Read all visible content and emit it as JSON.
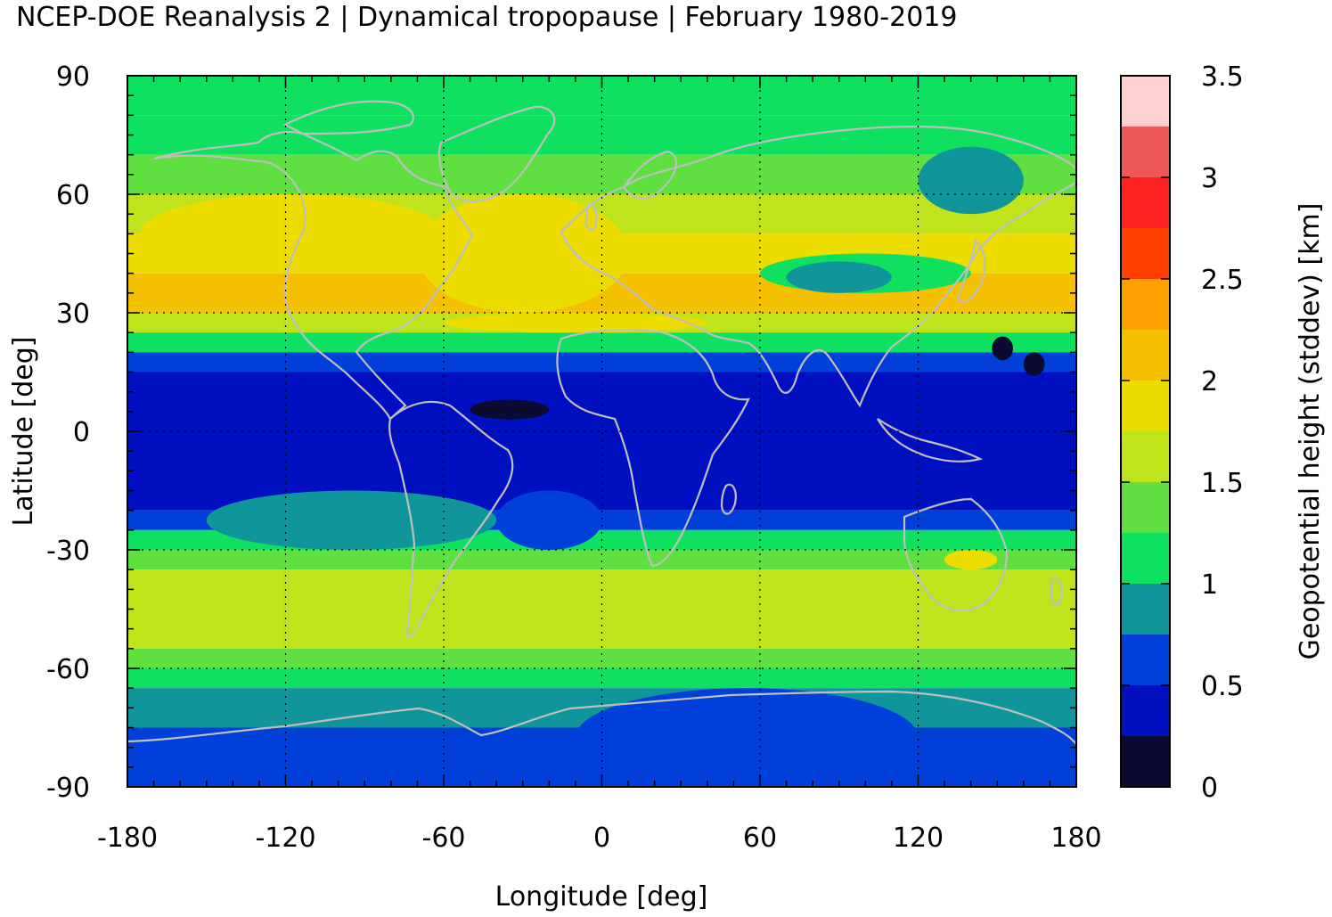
{
  "title": "NCEP-DOE Reanalysis 2 | Dynamical tropopause | February 1980-2019",
  "chart_data": {
    "type": "heatmap",
    "xlabel": "Longitude [deg]",
    "ylabel": "Latitude [deg]",
    "xlim": [
      -180,
      180
    ],
    "ylim": [
      -90,
      90
    ],
    "xticks": [
      "-180",
      "-120",
      "-60",
      "0",
      "60",
      "120",
      "180"
    ],
    "xtick_values": [
      -180,
      -120,
      -60,
      0,
      60,
      120,
      180
    ],
    "yticks": [
      "90",
      "60",
      "30",
      "0",
      "-30",
      "-60",
      "-90"
    ],
    "ytick_values": [
      90,
      60,
      30,
      0,
      -30,
      -60,
      -90
    ],
    "grid": true,
    "colorbar": {
      "label": "Geopotential height (stddev) [km]",
      "ticks": [
        "0",
        "0.5",
        "1",
        "1.5",
        "2",
        "2.5",
        "3",
        "3.5"
      ],
      "tick_values": [
        0,
        0.5,
        1,
        1.5,
        2,
        2.5,
        3,
        3.5
      ],
      "levels": [
        0,
        0.25,
        0.5,
        0.75,
        1,
        1.25,
        1.5,
        1.75,
        2,
        2.25,
        2.5,
        2.75,
        3,
        3.25,
        3.5
      ],
      "colors": [
        "#0a0a32",
        "#0010c0",
        "#0040d8",
        "#10969a",
        "#10e060",
        "#60e040",
        "#c0e41c",
        "#ecdc00",
        "#f4c000",
        "#ffa000",
        "#ff4000",
        "#ff2020",
        "#f05858",
        "#ffd0d0"
      ]
    },
    "land_outline_color": "#bfbfbf",
    "latitude_bands": [
      {
        "lat": [
          80,
          90
        ],
        "value": 1.1
      },
      {
        "lat": [
          70,
          80
        ],
        "value": 1.2
      },
      {
        "lat": [
          60,
          70
        ],
        "value": 1.4
      },
      {
        "lat": [
          50,
          60
        ],
        "value": 1.6
      },
      {
        "lat": [
          40,
          50
        ],
        "value": 1.9
      },
      {
        "lat": [
          30,
          40
        ],
        "value": 2.1
      },
      {
        "lat": [
          25,
          30
        ],
        "value": 1.7
      },
      {
        "lat": [
          20,
          25
        ],
        "value": 1.1
      },
      {
        "lat": [
          15,
          20
        ],
        "value": 0.7
      },
      {
        "lat": [
          -20,
          15
        ],
        "value": 0.4
      },
      {
        "lat": [
          -25,
          -20
        ],
        "value": 0.7
      },
      {
        "lat": [
          -30,
          -25
        ],
        "value": 1.1
      },
      {
        "lat": [
          -35,
          -30
        ],
        "value": 1.4
      },
      {
        "lat": [
          -55,
          -35
        ],
        "value": 1.6
      },
      {
        "lat": [
          -60,
          -55
        ],
        "value": 1.4
      },
      {
        "lat": [
          -65,
          -60
        ],
        "value": 1.1
      },
      {
        "lat": [
          -75,
          -65
        ],
        "value": 0.9
      },
      {
        "lat": [
          -90,
          -75
        ],
        "value": 0.6
      }
    ],
    "regions": [
      {
        "lon": [
          -175,
          -60
        ],
        "lat": [
          40,
          60
        ],
        "value": 1.9
      },
      {
        "lon": [
          -70,
          10
        ],
        "lat": [
          30,
          60
        ],
        "value": 1.9
      },
      {
        "lon": [
          -180,
          -150
        ],
        "lat": [
          30,
          38
        ],
        "value": 2.2
      },
      {
        "lon": [
          100,
          180
        ],
        "lat": [
          30,
          38
        ],
        "value": 2.2
      },
      {
        "lon": [
          -60,
          40
        ],
        "lat": [
          25,
          30
        ],
        "value": 1.9
      },
      {
        "lon": [
          -150,
          -40
        ],
        "lat": [
          -30,
          -15
        ],
        "value": 0.9
      },
      {
        "lon": [
          -40,
          0
        ],
        "lat": [
          -30,
          -15
        ],
        "value": 0.7
      },
      {
        "lon": [
          -180,
          180
        ],
        "lat": [
          -55,
          -40
        ],
        "value": 1.6
      },
      {
        "lon": [
          60,
          140
        ],
        "lat": [
          45,
          35
        ],
        "value": 1.1
      },
      {
        "lon": [
          70,
          110
        ],
        "lat": [
          43,
          35
        ],
        "value": 0.9
      },
      {
        "lon": [
          120,
          160
        ],
        "lat": [
          72,
          55
        ],
        "value": 0.9
      },
      {
        "lon": [
          130,
          150
        ],
        "lat": [
          -30,
          -35
        ],
        "value": 1.9
      },
      {
        "lon": [
          -10,
          120
        ],
        "lat": [
          -65,
          -90
        ],
        "value": 0.6
      },
      {
        "lon": [
          -180,
          -120
        ],
        "lat": [
          -85,
          -90
        ],
        "value": 0.6
      },
      {
        "lon": [
          -50,
          -20
        ],
        "lat": [
          8,
          3
        ],
        "value": 0.1
      },
      {
        "lon": [
          148,
          156
        ],
        "lat": [
          24,
          18
        ],
        "value": 0.1
      },
      {
        "lon": [
          160,
          168
        ],
        "lat": [
          20,
          14
        ],
        "value": 0.1
      }
    ]
  }
}
